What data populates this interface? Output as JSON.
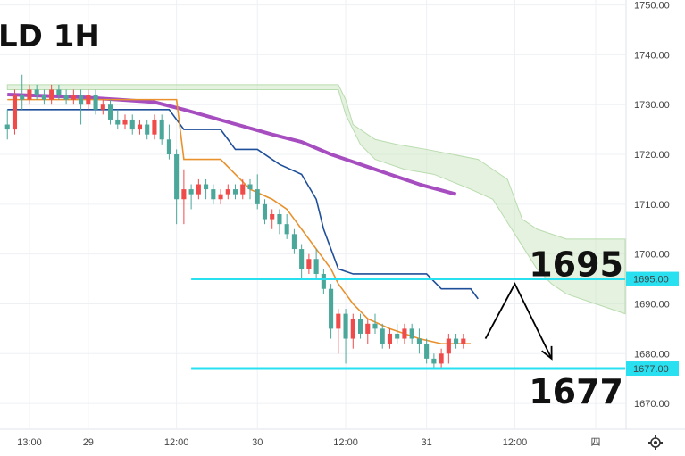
{
  "title": "LD 1H",
  "chart_data": {
    "type": "candlestick",
    "title": "LD 1H",
    "ylim": [
      1665,
      1751
    ],
    "y_ticks": [
      1750,
      1740,
      1730,
      1720,
      1710,
      1700,
      1690,
      1680,
      1670
    ],
    "y_tick_labels": [
      "1750.00",
      "1740.00",
      "1730.00",
      "1720.00",
      "1710.00",
      "1700.00",
      "1690.00",
      "1680.00",
      "1670.00"
    ],
    "x_ticks": [
      {
        "label": "13:00",
        "i": 3
      },
      {
        "label": "29",
        "i": 11
      },
      {
        "label": "12:00",
        "i": 23
      },
      {
        "label": "30",
        "i": 34
      },
      {
        "label": "12:00",
        "i": 46
      },
      {
        "label": "31",
        "i": 57
      },
      {
        "label": "12:00",
        "i": 69
      },
      {
        "label": "四",
        "i": 80
      }
    ],
    "x_range": [
      -1,
      84
    ],
    "candles": [
      [
        1726,
        1729,
        1723,
        1725
      ],
      [
        1725,
        1733,
        1724,
        1732
      ],
      [
        1732,
        1736,
        1729,
        1731
      ],
      [
        1731,
        1734,
        1730,
        1733
      ],
      [
        1733,
        1734,
        1731,
        1732
      ],
      [
        1732,
        1733,
        1730,
        1731
      ],
      [
        1731,
        1734,
        1730,
        1733
      ],
      [
        1733,
        1734,
        1731,
        1732
      ],
      [
        1732,
        1733,
        1730,
        1731
      ],
      [
        1731,
        1733,
        1730,
        1732
      ],
      [
        1732,
        1733,
        1726,
        1730
      ],
      [
        1730,
        1733,
        1729,
        1732
      ],
      [
        1732,
        1733,
        1728,
        1729
      ],
      [
        1729,
        1731,
        1728,
        1730
      ],
      [
        1730,
        1731,
        1726,
        1727
      ],
      [
        1727,
        1729,
        1725,
        1726
      ],
      [
        1726,
        1728,
        1725,
        1727
      ],
      [
        1727,
        1728,
        1724,
        1725
      ],
      [
        1725,
        1727,
        1724,
        1726
      ],
      [
        1726,
        1727,
        1723,
        1724
      ],
      [
        1724,
        1728,
        1723,
        1727
      ],
      [
        1727,
        1728,
        1722,
        1723
      ],
      [
        1723,
        1726,
        1719,
        1720
      ],
      [
        1720,
        1721,
        1706,
        1711
      ],
      [
        1711,
        1717,
        1706,
        1713
      ],
      [
        1713,
        1714,
        1709,
        1712
      ],
      [
        1712,
        1715,
        1711,
        1714
      ],
      [
        1714,
        1715,
        1711,
        1713
      ],
      [
        1713,
        1714,
        1710,
        1711
      ],
      [
        1711,
        1713,
        1710,
        1712
      ],
      [
        1712,
        1714,
        1711,
        1713
      ],
      [
        1713,
        1714,
        1711,
        1712
      ],
      [
        1712,
        1715,
        1711,
        1714
      ],
      [
        1714,
        1715,
        1711,
        1713
      ],
      [
        1713,
        1716,
        1709,
        1710
      ],
      [
        1710,
        1711,
        1706,
        1707
      ],
      [
        1707,
        1709,
        1705,
        1708
      ],
      [
        1708,
        1709,
        1704,
        1706
      ],
      [
        1706,
        1708,
        1703,
        1704
      ],
      [
        1704,
        1705,
        1700,
        1701
      ],
      [
        1701,
        1702,
        1695,
        1697
      ],
      [
        1697,
        1700,
        1696,
        1699
      ],
      [
        1699,
        1701,
        1695,
        1696
      ],
      [
        1696,
        1697,
        1692,
        1693
      ],
      [
        1693,
        1694,
        1683,
        1685
      ],
      [
        1685,
        1689,
        1680,
        1688
      ],
      [
        1688,
        1689,
        1678,
        1683
      ],
      [
        1683,
        1688,
        1681,
        1687
      ],
      [
        1687,
        1688,
        1683,
        1684
      ],
      [
        1684,
        1687,
        1682,
        1686
      ],
      [
        1686,
        1688,
        1684,
        1685
      ],
      [
        1685,
        1686,
        1681,
        1682
      ],
      [
        1682,
        1685,
        1681,
        1684
      ],
      [
        1684,
        1686,
        1682,
        1683
      ],
      [
        1683,
        1686,
        1682,
        1685
      ],
      [
        1685,
        1686,
        1682,
        1683
      ],
      [
        1683,
        1685,
        1680,
        1682
      ],
      [
        1682,
        1683,
        1678,
        1679
      ],
      [
        1679,
        1680,
        1677,
        1678
      ],
      [
        1678,
        1681,
        1677,
        1680
      ],
      [
        1680,
        1684,
        1678,
        1683
      ],
      [
        1683,
        1684,
        1681,
        1682
      ],
      [
        1682,
        1684,
        1681,
        1683
      ]
    ],
    "conversion_line": [
      [
        0,
        1731
      ],
      [
        23,
        1731
      ],
      [
        24,
        1719
      ],
      [
        29,
        1719
      ],
      [
        31,
        1716
      ],
      [
        33,
        1713
      ],
      [
        36,
        1711
      ],
      [
        38,
        1709
      ],
      [
        40,
        1705
      ],
      [
        42,
        1701
      ],
      [
        44,
        1697
      ],
      [
        45,
        1694
      ],
      [
        47,
        1690
      ],
      [
        49,
        1687
      ],
      [
        52,
        1685
      ],
      [
        56,
        1683
      ],
      [
        59,
        1682
      ],
      [
        63,
        1682
      ]
    ],
    "base_line": [
      [
        0,
        1729
      ],
      [
        22,
        1729
      ],
      [
        23,
        1727
      ],
      [
        24,
        1725
      ],
      [
        29,
        1725
      ],
      [
        31,
        1721
      ],
      [
        34,
        1721
      ],
      [
        37,
        1718
      ],
      [
        40,
        1716
      ],
      [
        42,
        1711
      ],
      [
        43,
        1705
      ],
      [
        45,
        1697
      ],
      [
        47,
        1696
      ],
      [
        57,
        1696
      ],
      [
        59,
        1693
      ],
      [
        63,
        1693
      ],
      [
        64,
        1691
      ]
    ],
    "moving_average": [
      [
        0,
        1732
      ],
      [
        10,
        1731.5
      ],
      [
        20,
        1730.5
      ],
      [
        24,
        1729
      ],
      [
        30,
        1726.5
      ],
      [
        36,
        1724
      ],
      [
        40,
        1722.5
      ],
      [
        44,
        1720
      ],
      [
        48,
        1718
      ],
      [
        52,
        1716
      ],
      [
        56,
        1714
      ],
      [
        61,
        1712
      ]
    ],
    "cloud_upper": [
      [
        0,
        1734
      ],
      [
        45,
        1734
      ],
      [
        46,
        1731
      ],
      [
        47,
        1726
      ],
      [
        50,
        1723
      ],
      [
        53,
        1722
      ],
      [
        57,
        1721
      ],
      [
        64,
        1719
      ],
      [
        66,
        1717
      ],
      [
        68,
        1715
      ],
      [
        70,
        1707
      ],
      [
        72,
        1705
      ],
      [
        76,
        1703
      ],
      [
        84,
        1703
      ]
    ],
    "cloud_lower": [
      [
        0,
        1733
      ],
      [
        45,
        1733
      ],
      [
        46,
        1728
      ],
      [
        48,
        1722
      ],
      [
        50,
        1719
      ],
      [
        54,
        1717
      ],
      [
        58,
        1716
      ],
      [
        63,
        1713
      ],
      [
        66,
        1711
      ],
      [
        69,
        1704
      ],
      [
        72,
        1697
      ],
      [
        74,
        1694
      ],
      [
        76,
        1692
      ],
      [
        80,
        1690
      ],
      [
        84,
        1688
      ]
    ],
    "cloud_color": "#cde8c4",
    "conversion_color": "#e8912d",
    "base_color": "#1f4f99",
    "ma_color": "#a64dbf",
    "up_color": "#ef4b4b",
    "down_color": "#4aa79a",
    "levels": [
      {
        "value": 1695,
        "label": "1695.00",
        "big_label": "1695",
        "color": "#29e0f0"
      },
      {
        "value": 1677,
        "label": "1677.00",
        "big_label": "1677",
        "color": "#29e0f0"
      }
    ],
    "projection": [
      [
        65,
        1683
      ],
      [
        69,
        1694
      ],
      [
        74,
        1679
      ]
    ]
  }
}
